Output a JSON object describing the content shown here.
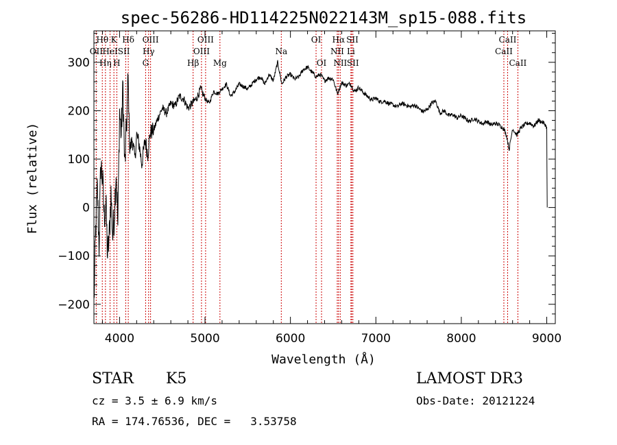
{
  "chart_data": {
    "type": "line",
    "title": "spec-56286-HD114225N022143M_sp15-088.fits",
    "xlabel": "Wavelength (Å)",
    "ylabel": "Flux (relative)",
    "xlim": [
      3700,
      9100
    ],
    "ylim": [
      -240,
      365
    ],
    "xticks": [
      4000,
      5000,
      6000,
      7000,
      8000,
      9000
    ],
    "yticks": [
      -200,
      -100,
      0,
      100,
      200,
      300
    ],
    "grid": false,
    "series": [
      {
        "name": "flux",
        "x": [
          3700,
          3720,
          3740,
          3760,
          3780,
          3800,
          3820,
          3840,
          3860,
          3880,
          3900,
          3920,
          3940,
          3960,
          3980,
          4000,
          4020,
          4040,
          4060,
          4080,
          4100,
          4120,
          4150,
          4180,
          4200,
          4230,
          4260,
          4300,
          4330,
          4360,
          4400,
          4450,
          4500,
          4550,
          4600,
          4650,
          4700,
          4750,
          4800,
          4850,
          4900,
          4950,
          5000,
          5050,
          5100,
          5150,
          5200,
          5250,
          5300,
          5350,
          5400,
          5450,
          5500,
          5550,
          5600,
          5650,
          5700,
          5750,
          5800,
          5850,
          5900,
          5950,
          6000,
          6050,
          6100,
          6150,
          6200,
          6250,
          6300,
          6350,
          6400,
          6450,
          6500,
          6550,
          6600,
          6650,
          6700,
          6750,
          6800,
          6850,
          6900,
          6950,
          7000,
          7050,
          7100,
          7150,
          7200,
          7250,
          7300,
          7350,
          7400,
          7450,
          7500,
          7550,
          7600,
          7650,
          7700,
          7750,
          7800,
          7850,
          7900,
          7950,
          8000,
          8050,
          8100,
          8150,
          8200,
          8250,
          8300,
          8350,
          8400,
          8450,
          8500,
          8530,
          8560,
          8600,
          8650,
          8700,
          8750,
          8800,
          8850,
          8900,
          8950,
          8980,
          9000,
          9005
        ],
        "y": [
          -200,
          -50,
          40,
          -80,
          90,
          60,
          -20,
          10,
          -100,
          -60,
          30,
          -60,
          -10,
          80,
          -40,
          200,
          150,
          250,
          80,
          160,
          270,
          120,
          140,
          100,
          150,
          130,
          90,
          140,
          110,
          155,
          160,
          185,
          205,
          195,
          215,
          210,
          230,
          225,
          205,
          215,
          225,
          245,
          225,
          215,
          240,
          235,
          245,
          255,
          230,
          240,
          255,
          250,
          245,
          255,
          265,
          270,
          255,
          275,
          262,
          300,
          255,
          270,
          275,
          265,
          270,
          285,
          290,
          280,
          270,
          275,
          262,
          268,
          265,
          235,
          258,
          252,
          256,
          240,
          248,
          238,
          230,
          222,
          226,
          218,
          220,
          215,
          212,
          208,
          215,
          212,
          208,
          212,
          205,
          198,
          202,
          215,
          220,
          195,
          200,
          190,
          192,
          185,
          190,
          183,
          178,
          184,
          178,
          173,
          178,
          170,
          174,
          170,
          162,
          148,
          120,
          163,
          150,
          165,
          172,
          175,
          168,
          180,
          176,
          172,
          165,
          0
        ]
      }
    ],
    "lines": [
      {
        "name": "OII",
        "x": 3727
      },
      {
        "name": "Hθ",
        "x": 3798
      },
      {
        "name": "Hη",
        "x": 3835
      },
      {
        "name": "HeI",
        "x": 3889
      },
      {
        "name": "K",
        "x": 3934
      },
      {
        "name": "H",
        "x": 3968
      },
      {
        "name": "SII",
        "x": 4072
      },
      {
        "name": "Hδ",
        "x": 4102
      },
      {
        "name": "Hγ",
        "x": 4340
      },
      {
        "name": "G",
        "x": 4305
      },
      {
        "name": "OIII",
        "x": 4363
      },
      {
        "name": "Hβ",
        "x": 4861
      },
      {
        "name": "OIII",
        "x": 4959
      },
      {
        "name": "OIII",
        "x": 5007
      },
      {
        "name": "Mg",
        "x": 5175
      },
      {
        "name": "Na",
        "x": 5893
      },
      {
        "name": "OI",
        "x": 6300
      },
      {
        "name": "OI",
        "x": 6364
      },
      {
        "name": "NII",
        "x": 6548
      },
      {
        "name": "Hα",
        "x": 6563
      },
      {
        "name": "NII",
        "x": 6583
      },
      {
        "name": "Li",
        "x": 6708
      },
      {
        "name": "SII",
        "x": 6716
      },
      {
        "name": "SII",
        "x": 6731
      },
      {
        "name": "CaII",
        "x": 8498
      },
      {
        "name": "CaII",
        "x": 8542
      },
      {
        "name": "CaII",
        "x": 8662
      }
    ],
    "line_labels": [
      {
        "text": "OII",
        "row": 1,
        "x": 3727
      },
      {
        "text": "Hθ",
        "row": 0,
        "x": 3798
      },
      {
        "text": "Hη",
        "row": 2,
        "x": 3835
      },
      {
        "text": "HeI",
        "row": 1,
        "x": 3889
      },
      {
        "text": "K",
        "row": 0,
        "x": 3934
      },
      {
        "text": "H",
        "row": 2,
        "x": 3968
      },
      {
        "text": "SII",
        "row": 1,
        "x": 4050
      },
      {
        "text": "Hδ",
        "row": 0,
        "x": 4102
      },
      {
        "text": "OIII",
        "row": 0,
        "x": 4363
      },
      {
        "text": "Hγ",
        "row": 1,
        "x": 4340
      },
      {
        "text": "G",
        "row": 2,
        "x": 4305
      },
      {
        "text": "OIII",
        "row": 0,
        "x": 5007
      },
      {
        "text": "OIII",
        "row": 1,
        "x": 4959
      },
      {
        "text": "Hβ",
        "row": 2,
        "x": 4861
      },
      {
        "text": "Mg",
        "row": 2,
        "x": 5175
      },
      {
        "text": "Na",
        "row": 1,
        "x": 5893
      },
      {
        "text": "OI",
        "row": 0,
        "x": 6300
      },
      {
        "text": "OI",
        "row": 2,
        "x": 6364
      },
      {
        "text": "Hα",
        "row": 0,
        "x": 6563
      },
      {
        "text": "SII",
        "row": 0,
        "x": 6725
      },
      {
        "text": "NII",
        "row": 1,
        "x": 6548
      },
      {
        "text": "Li",
        "row": 1,
        "x": 6708
      },
      {
        "text": "NII",
        "row": 2,
        "x": 6583
      },
      {
        "text": "SII",
        "row": 2,
        "x": 6731
      },
      {
        "text": "CaII",
        "row": 0,
        "x": 8542
      },
      {
        "text": "CaII",
        "row": 1,
        "x": 8498
      },
      {
        "text": "CaII",
        "row": 2,
        "x": 8662
      }
    ],
    "colors": {
      "spectrum": "#000000",
      "line_marker": "#cc0000",
      "axes": "#000000"
    }
  },
  "info": {
    "class_label": "STAR",
    "subclass_label": "K5",
    "survey": "LAMOST DR3",
    "cz_text": "cz = 3.5 ± 6.9 km/s",
    "obs_date": "Obs-Date: 20121224",
    "radec": "RA = 174.76536, DEC =   3.53758"
  }
}
